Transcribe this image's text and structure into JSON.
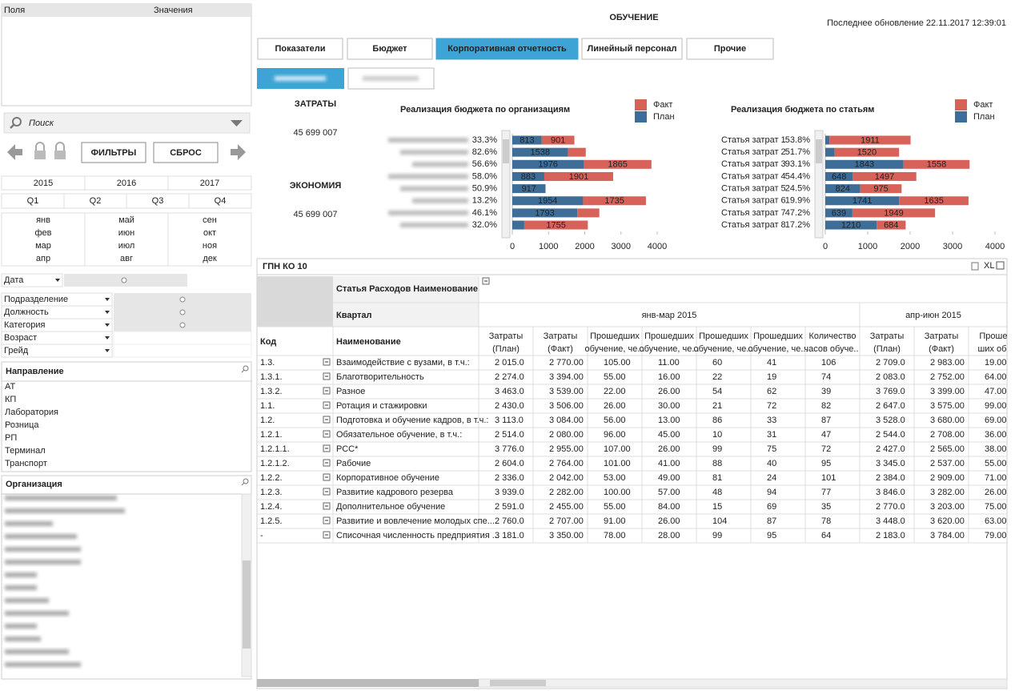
{
  "fields_panel": {
    "fields": "Поля",
    "values": "Значения"
  },
  "search": "Поиск",
  "buttons": {
    "filters": "ФИЛЬТРЫ",
    "reset": "СБРОС"
  },
  "years": [
    "2015",
    "2016",
    "2017"
  ],
  "quarters": [
    "Q1",
    "Q2",
    "Q3",
    "Q4"
  ],
  "months": [
    [
      "янв",
      "фев",
      "мар",
      "апр"
    ],
    [
      "май",
      "июн",
      "июл",
      "авг"
    ],
    [
      "сен",
      "окт",
      "ноя",
      "дек"
    ]
  ],
  "date_filter": "Дата",
  "dimensions": [
    "Подразделение",
    "Должность",
    "Категория",
    "Возраст",
    "Грейд"
  ],
  "direction": {
    "title": "Направление",
    "items": [
      "АТ",
      "КП",
      "Лаборатория",
      "Розница",
      "РП",
      "Терминал",
      "Транспорт"
    ]
  },
  "organization": {
    "title": "Организация"
  },
  "header": {
    "title": "ОБУЧЕНИЕ",
    "updated": "Последнее обновление 22.11.2017 12:39:01"
  },
  "tabs": [
    "Показатели",
    "Бюджет",
    "Корпоративная отчетность",
    "Линейный персонал",
    "Прочие"
  ],
  "active_tab": "Корпоративная отчетность",
  "kpis": [
    {
      "label": "ЗАТРАТЫ",
      "value": "45 699 007"
    },
    {
      "label": "ЭКОНОМИЯ",
      "value": "45 699 007"
    }
  ],
  "chart_data": [
    {
      "type": "bar",
      "orientation": "horizontal",
      "stacked": true,
      "title": "Реализация бюджета  по организациям",
      "categories": [
        null,
        null,
        null,
        null,
        null,
        null,
        null,
        null
      ],
      "percent_labels": [
        "33.3%",
        "82.6%",
        "56.6%",
        "58.0%",
        "50.9%",
        "13.2%",
        "46.1%",
        "32.0%"
      ],
      "series": [
        {
          "name": "Факт",
          "color": "#d6625a",
          "values": [
            901,
            490,
            1865,
            1901,
            0,
            1735,
            609,
            1755
          ]
        },
        {
          "name": "План",
          "color": "#3e6d98",
          "values": [
            813,
            1538,
            1976,
            883,
            917,
            1954,
            1793,
            330
          ]
        }
      ],
      "xlim": [
        0,
        4000
      ],
      "xticks": [
        0,
        1000,
        2000,
        3000,
        4000
      ]
    },
    {
      "type": "bar",
      "orientation": "horizontal",
      "stacked": true,
      "title": "Реализация бюджета по статьям",
      "categories": [
        "Статья затрат 1",
        "Статья затрат 2",
        "Статья затрат 3",
        "Статья затрат 4",
        "Статья затрат 5",
        "Статья затрат 6",
        "Статья затрат 7",
        "Статья затрат 8"
      ],
      "percent_labels": [
        "53.8%",
        "51.7%",
        "93.1%",
        "54.4%",
        "24.5%",
        "19.9%",
        "47.2%",
        "17.2%"
      ],
      "series": [
        {
          "name": "Факт",
          "color": "#d6625a",
          "values": [
            1911,
            1520,
            1558,
            1497,
            975,
            1635,
            1949,
            684
          ]
        },
        {
          "name": "План",
          "color": "#3e6d98",
          "values": [
            100,
            220,
            1843,
            648,
            824,
            1741,
            639,
            1210
          ]
        }
      ],
      "xlim": [
        0,
        4000
      ],
      "xticks": [
        0,
        1000,
        2000,
        3000,
        4000
      ]
    }
  ],
  "table": {
    "title": "ГПН КО 10",
    "export": "XL",
    "row_dim_label": "Статья Расходов Наименование",
    "col_dim_label": "Квартал",
    "key_headers": [
      "Код",
      "Наименование"
    ],
    "periods": [
      "янв-мар 2015",
      "апр-июн 2015"
    ],
    "columns": [
      "Затраты (План)",
      "Затраты (Факт)",
      "Прошедших обучение, че...",
      "Прошедших обучение, че...",
      "Прошедших обучение, че...",
      "Прошедших обучение, че...",
      "Количество часов обуче...",
      "Затраты (План)",
      "Затраты (Факт)",
      "Прошед ших об..."
    ],
    "rows": [
      [
        "1.3.",
        "Взаимодействие с вузами, в т.ч.:",
        "2 015.0",
        "2 770.00",
        "105.00",
        "11.00",
        "60",
        "41",
        "106",
        "2 709.0",
        "2 983.00",
        "19.00"
      ],
      [
        "1.3.1.",
        "Благотворительность",
        "2 274.0",
        "3 394.00",
        "55.00",
        "16.00",
        "22",
        "19",
        "74",
        "2 083.0",
        "2 752.00",
        "64.00"
      ],
      [
        "1.3.2.",
        "Разное",
        "3 463.0",
        "3 539.00",
        "22.00",
        "26.00",
        "54",
        "62",
        "39",
        "3 769.0",
        "3 399.00",
        "47.00"
      ],
      [
        "1.1.",
        "Ротация и стажировки",
        "2 430.0",
        "3 506.00",
        "26.00",
        "30.00",
        "21",
        "72",
        "82",
        "2 647.0",
        "3 575.00",
        "99.00"
      ],
      [
        "1.2.",
        "Подготовка и обучение кадров, в т.ч.:",
        "3 113.0",
        "3 084.00",
        "56.00",
        "13.00",
        "86",
        "33",
        "87",
        "3 528.0",
        "3 680.00",
        "69.00"
      ],
      [
        "1.2.1.",
        "Обязательное обучение, в т.ч.:",
        "2 514.0",
        "2 080.00",
        "96.00",
        "45.00",
        "10",
        "31",
        "47",
        "2 544.0",
        "2 708.00",
        "36.00"
      ],
      [
        "1.2.1.1.",
        "РСС*",
        "3 776.0",
        "2 955.00",
        "107.00",
        "26.00",
        "99",
        "75",
        "72",
        "2 427.0",
        "2 565.00",
        "38.00"
      ],
      [
        "1.2.1.2.",
        "Рабочие",
        "2 604.0",
        "2 764.00",
        "101.00",
        "41.00",
        "88",
        "40",
        "95",
        "3 345.0",
        "2 537.00",
        "55.00"
      ],
      [
        "1.2.2.",
        "Корпоративное обучение",
        "2 336.0",
        "2 042.00",
        "53.00",
        "49.00",
        "81",
        "24",
        "101",
        "2 384.0",
        "2 909.00",
        "71.00"
      ],
      [
        "1.2.3.",
        "Развитие кадрового резерва",
        "3 939.0",
        "2 282.00",
        "100.00",
        "57.00",
        "48",
        "94",
        "77",
        "3 846.0",
        "3 282.00",
        "26.00"
      ],
      [
        "1.2.4.",
        "Дополнительное обучение",
        "2 591.0",
        "2 455.00",
        "55.00",
        "84.00",
        "15",
        "69",
        "35",
        "2 770.0",
        "3 203.00",
        "75.00"
      ],
      [
        "1.2.5.",
        "Развитие и вовлечение молодых спе...",
        "2 760.0",
        "2 707.00",
        "91.00",
        "26.00",
        "104",
        "87",
        "78",
        "3 448.0",
        "3 620.00",
        "63.00"
      ],
      [
        "-",
        "Списочная численность предприятия ...",
        "3 181.0",
        "3 350.00",
        "78.00",
        "28.00",
        "99",
        "95",
        "64",
        "2 183.0",
        "3 784.00",
        "79.00"
      ]
    ]
  }
}
